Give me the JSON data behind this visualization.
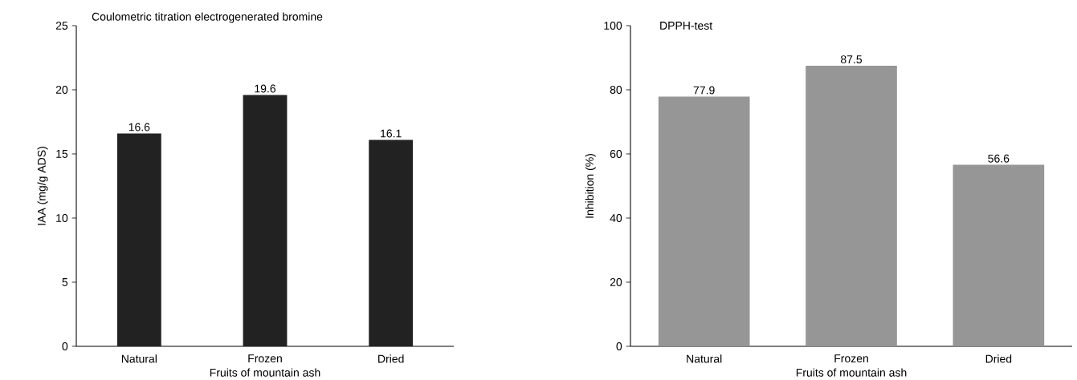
{
  "chart_data": [
    {
      "type": "bar",
      "title": "Coulometric titration electrogenerated bromine",
      "xlabel": "Fruits of mountain ash",
      "ylabel": "IAA (mg/g ADS)",
      "categories": [
        "Natural",
        "Frozen",
        "Dried"
      ],
      "values": [
        16.6,
        19.6,
        16.1
      ],
      "color": "#222222",
      "ylim": [
        0,
        25
      ],
      "yticks": [
        0,
        5,
        10,
        15,
        20,
        25
      ],
      "data_labels": true,
      "grid": false
    },
    {
      "type": "bar",
      "title": "DPPH-test",
      "xlabel": "Fruits of mountain ash",
      "ylabel": "Inhibition (%)",
      "categories": [
        "Natural",
        "Frozen",
        "Dried"
      ],
      "values": [
        77.9,
        87.5,
        56.6
      ],
      "color": "#969696",
      "ylim": [
        0,
        100
      ],
      "yticks": [
        0,
        20,
        40,
        60,
        80,
        100
      ],
      "data_labels": true,
      "grid": false
    }
  ]
}
